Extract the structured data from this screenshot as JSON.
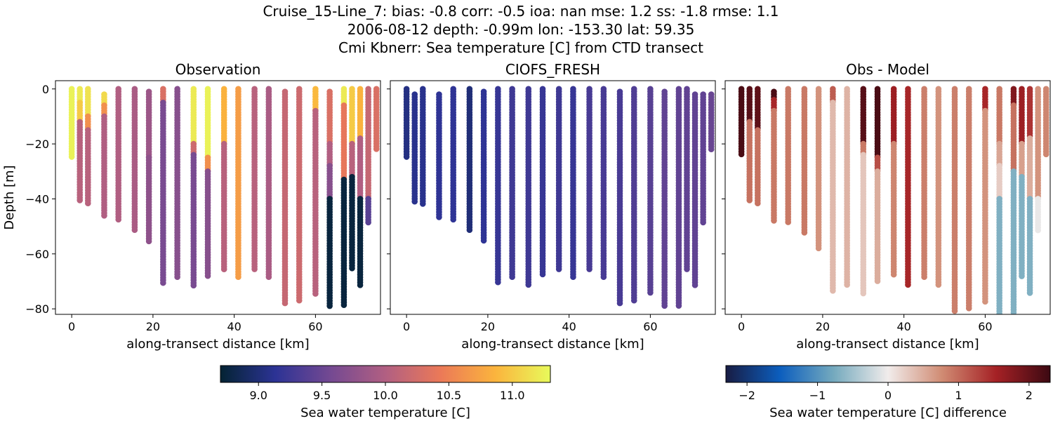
{
  "suptitle": [
    "Cruise_15-Line_7: bias: -0.8  corr: -0.5  ioa: nan  mse: 1.2  ss: -1.8  rmse: 1.1",
    "2006-08-12 depth: -0.99m lon: -153.30 lat: 59.35",
    "Cmi Kbnerr: Sea temperature [C] from CTD transect"
  ],
  "chart_data": [
    {
      "type": "scatter",
      "title": "Observation",
      "xlabel": "along-transect distance [km]",
      "ylabel": "Depth [m]",
      "xlim": [
        -4,
        76
      ],
      "ylim": [
        -82,
        3
      ],
      "xticks": [
        0,
        20,
        40,
        60
      ],
      "yticks": [
        0,
        -20,
        -40,
        -60,
        -80
      ],
      "colormap": "thermal",
      "vmin": 8.7,
      "vmax": 11.3,
      "stations": [
        {
          "x": 0.0,
          "bottom": -25,
          "segments": [
            [
              0,
              -25,
              11.25
            ]
          ]
        },
        {
          "x": 2.0,
          "bottom": -41,
          "segments": [
            [
              0,
              -5,
              11.2
            ],
            [
              -5,
              -12,
              11.0
            ],
            [
              -12,
              -41,
              10.05
            ]
          ]
        },
        {
          "x": 4.0,
          "bottom": -42,
          "segments": [
            [
              0,
              -10,
              11.15
            ],
            [
              -10,
              -15,
              10.6
            ],
            [
              -15,
              -42,
              10.05
            ]
          ]
        },
        {
          "x": 8.0,
          "bottom": -47,
          "segments": [
            [
              -2,
              -6,
              11.1
            ],
            [
              -6,
              -10,
              10.6
            ],
            [
              -10,
              -47,
              10.0
            ]
          ]
        },
        {
          "x": 11.5,
          "bottom": -48,
          "segments": [
            [
              0,
              -48,
              10.0
            ]
          ]
        },
        {
          "x": 15.5,
          "bottom": -52,
          "segments": [
            [
              0,
              -52,
              9.95
            ]
          ]
        },
        {
          "x": 19.0,
          "bottom": -56,
          "segments": [
            [
              -1,
              -25,
              9.85
            ],
            [
              -25,
              -56,
              9.75
            ]
          ]
        },
        {
          "x": 22.5,
          "bottom": -71,
          "segments": [
            [
              0,
              -5,
              10.3
            ],
            [
              -5,
              -71,
              9.6
            ]
          ]
        },
        {
          "x": 26.0,
          "bottom": -69,
          "segments": [
            [
              0,
              -69,
              9.7
            ]
          ]
        },
        {
          "x": 30.0,
          "bottom": -72,
          "segments": [
            [
              0,
              -20,
              11.2
            ],
            [
              -20,
              -24,
              10.2
            ],
            [
              -24,
              -72,
              9.6
            ]
          ]
        },
        {
          "x": 33.5,
          "bottom": -68,
          "segments": [
            [
              0,
              -25,
              11.25
            ],
            [
              -25,
              -30,
              10.6
            ],
            [
              -30,
              -68,
              9.7
            ]
          ]
        },
        {
          "x": 37.5,
          "bottom": -66,
          "segments": [
            [
              0,
              -20,
              10.85
            ],
            [
              -20,
              -66,
              10.05
            ]
          ]
        },
        {
          "x": 41.0,
          "bottom": -69,
          "segments": [
            [
              0,
              -69,
              10.7
            ]
          ]
        },
        {
          "x": 45.0,
          "bottom": -66,
          "segments": [
            [
              0,
              -66,
              10.05
            ]
          ]
        },
        {
          "x": 48.5,
          "bottom": -69,
          "segments": [
            [
              0,
              -69,
              9.95
            ]
          ]
        },
        {
          "x": 52.5,
          "bottom": -78,
          "segments": [
            [
              -1,
              -78,
              10.15
            ]
          ]
        },
        {
          "x": 56.0,
          "bottom": -77,
          "segments": [
            [
              0,
              -77,
              10.2
            ]
          ]
        },
        {
          "x": 60.0,
          "bottom": -75,
          "segments": [
            [
              0,
              -8,
              10.9
            ],
            [
              -8,
              -75,
              10.05
            ]
          ]
        },
        {
          "x": 63.5,
          "bottom": -79,
          "segments": [
            [
              -1,
              -20,
              10.3
            ],
            [
              -20,
              -28,
              10.0
            ],
            [
              -28,
              -40,
              9.7
            ],
            [
              -40,
              -79,
              8.75
            ]
          ]
        },
        {
          "x": 67.0,
          "bottom": -79,
          "segments": [
            [
              0,
              -6,
              11.2
            ],
            [
              -6,
              -33,
              10.4
            ],
            [
              -33,
              -79,
              8.75
            ]
          ]
        },
        {
          "x": 69.0,
          "bottom": -66,
          "segments": [
            [
              0,
              -20,
              11.0
            ],
            [
              -20,
              -32,
              10.05
            ],
            [
              -32,
              -66,
              8.75
            ]
          ]
        },
        {
          "x": 71.0,
          "bottom": -72,
          "segments": [
            [
              0,
              -18,
              10.85
            ],
            [
              -18,
              -40,
              10.0
            ],
            [
              -40,
              -72,
              8.75
            ]
          ]
        },
        {
          "x": 73.0,
          "bottom": -49,
          "segments": [
            [
              0,
              -40,
              10.15
            ],
            [
              -40,
              -49,
              9.4
            ]
          ]
        },
        {
          "x": 75.0,
          "bottom": -22,
          "segments": [
            [
              0,
              -22,
              10.3
            ]
          ]
        }
      ]
    },
    {
      "type": "scatter",
      "title": "CIOFS_FRESH",
      "xlabel": "along-transect distance [km]",
      "ylabel": "",
      "xlim": [
        -4,
        76
      ],
      "ylim": [
        -82,
        3
      ],
      "xticks": [
        0,
        20,
        40,
        60
      ],
      "yticks": [
        0,
        -20,
        -40,
        -60,
        -80
      ],
      "colormap": "thermal",
      "vmin": 8.7,
      "vmax": 11.3,
      "stations": [
        {
          "x": 0.0,
          "bottom": -25,
          "segments": [
            [
              0,
              -25,
              9.05
            ]
          ]
        },
        {
          "x": 2.0,
          "bottom": -41,
          "segments": [
            [
              -2,
              -41,
              9.1
            ]
          ]
        },
        {
          "x": 4.0,
          "bottom": -42,
          "segments": [
            [
              0,
              -42,
              9.1
            ]
          ]
        },
        {
          "x": 8.0,
          "bottom": -47,
          "segments": [
            [
              -2,
              -47,
              9.15
            ]
          ]
        },
        {
          "x": 11.5,
          "bottom": -48,
          "segments": [
            [
              0,
              -48,
              9.15
            ]
          ]
        },
        {
          "x": 15.5,
          "bottom": -52,
          "segments": [
            [
              0,
              -52,
              9.0
            ]
          ]
        },
        {
          "x": 19.0,
          "bottom": -56,
          "segments": [
            [
              -1,
              -56,
              9.15
            ]
          ]
        },
        {
          "x": 22.5,
          "bottom": -71,
          "segments": [
            [
              0,
              -71,
              9.2
            ]
          ]
        },
        {
          "x": 26.0,
          "bottom": -69,
          "segments": [
            [
              0,
              -69,
              9.25
            ]
          ]
        },
        {
          "x": 30.0,
          "bottom": -72,
          "segments": [
            [
              0,
              -72,
              9.25
            ]
          ]
        },
        {
          "x": 33.5,
          "bottom": -68,
          "segments": [
            [
              0,
              -68,
              9.2
            ]
          ]
        },
        {
          "x": 37.5,
          "bottom": -66,
          "segments": [
            [
              0,
              -66,
              9.25
            ]
          ]
        },
        {
          "x": 41.0,
          "bottom": -69,
          "segments": [
            [
              0,
              -69,
              9.2
            ]
          ]
        },
        {
          "x": 45.0,
          "bottom": -66,
          "segments": [
            [
              0,
              -66,
              9.3
            ]
          ]
        },
        {
          "x": 48.5,
          "bottom": -69,
          "segments": [
            [
              0,
              -69,
              9.3
            ]
          ]
        },
        {
          "x": 52.5,
          "bottom": -78,
          "segments": [
            [
              -1,
              -78,
              9.3
            ]
          ]
        },
        {
          "x": 56.0,
          "bottom": -77,
          "segments": [
            [
              0,
              -77,
              9.35
            ]
          ]
        },
        {
          "x": 60.0,
          "bottom": -75,
          "segments": [
            [
              0,
              -75,
              9.4
            ]
          ]
        },
        {
          "x": 63.5,
          "bottom": -79,
          "segments": [
            [
              -1,
              -79,
              9.45
            ]
          ]
        },
        {
          "x": 67.0,
          "bottom": -79,
          "segments": [
            [
              0,
              -79,
              9.45
            ]
          ]
        },
        {
          "x": 69.0,
          "bottom": -66,
          "segments": [
            [
              0,
              -66,
              9.45
            ]
          ]
        },
        {
          "x": 71.0,
          "bottom": -72,
          "segments": [
            [
              -2,
              -72,
              9.45
            ]
          ]
        },
        {
          "x": 73.0,
          "bottom": -49,
          "segments": [
            [
              -2,
              -49,
              9.45
            ]
          ]
        },
        {
          "x": 75.0,
          "bottom": -22,
          "segments": [
            [
              -2,
              -22,
              9.5
            ]
          ]
        }
      ]
    },
    {
      "type": "scatter",
      "title": "Obs - Model",
      "xlabel": "along-transect distance [km]",
      "ylabel": "",
      "xlim": [
        -4,
        76
      ],
      "ylim": [
        -82,
        3
      ],
      "xticks": [
        0,
        20,
        40,
        60
      ],
      "yticks": [
        0,
        -20,
        -40,
        -60,
        -80
      ],
      "colormap": "balance",
      "vmin": -2.3,
      "vmax": 2.3,
      "stations": [
        {
          "x": 0.0,
          "bottom": -24,
          "segments": [
            [
              0,
              -24,
              2.2
            ]
          ]
        },
        {
          "x": 2.0,
          "bottom": -41,
          "segments": [
            [
              0,
              -12,
              2.1
            ],
            [
              -12,
              -41,
              0.95
            ]
          ]
        },
        {
          "x": 4.0,
          "bottom": -42,
          "segments": [
            [
              0,
              -15,
              2.05
            ],
            [
              -15,
              -42,
              0.95
            ]
          ]
        },
        {
          "x": 8.0,
          "bottom": -48,
          "segments": [
            [
              -1,
              -4,
              2.2
            ],
            [
              -4,
              -8,
              1.5
            ],
            [
              -8,
              -48,
              0.9
            ]
          ]
        },
        {
          "x": 11.5,
          "bottom": -49,
          "segments": [
            [
              0,
              -49,
              0.9
            ]
          ]
        },
        {
          "x": 15.5,
          "bottom": -53,
          "segments": [
            [
              0,
              -53,
              0.9
            ]
          ]
        },
        {
          "x": 19.0,
          "bottom": -58,
          "segments": [
            [
              0,
              -58,
              0.7
            ]
          ]
        },
        {
          "x": 22.5,
          "bottom": -74,
          "segments": [
            [
              0,
              -5,
              1.1
            ],
            [
              -5,
              -74,
              0.4
            ]
          ]
        },
        {
          "x": 26.0,
          "bottom": -72,
          "segments": [
            [
              0,
              -72,
              0.45
            ]
          ]
        },
        {
          "x": 30.0,
          "bottom": -75,
          "segments": [
            [
              0,
              -20,
              2.1
            ],
            [
              -20,
              -24,
              0.9
            ],
            [
              -24,
              -75,
              0.3
            ]
          ]
        },
        {
          "x": 33.5,
          "bottom": -70,
          "segments": [
            [
              0,
              -25,
              2.2
            ],
            [
              -25,
              -30,
              1.2
            ],
            [
              -30,
              -70,
              0.5
            ]
          ]
        },
        {
          "x": 37.5,
          "bottom": -68,
          "segments": [
            [
              0,
              -20,
              1.6
            ],
            [
              -20,
              -68,
              0.8
            ]
          ]
        },
        {
          "x": 41.0,
          "bottom": -72,
          "segments": [
            [
              0,
              -72,
              1.5
            ]
          ]
        },
        {
          "x": 45.0,
          "bottom": -69,
          "segments": [
            [
              0,
              -69,
              0.85
            ]
          ]
        },
        {
          "x": 48.5,
          "bottom": -72,
          "segments": [
            [
              0,
              -72,
              0.7
            ]
          ]
        },
        {
          "x": 52.5,
          "bottom": -81,
          "segments": [
            [
              0,
              -81,
              0.85
            ]
          ]
        },
        {
          "x": 56.0,
          "bottom": -80,
          "segments": [
            [
              0,
              -80,
              0.85
            ]
          ]
        },
        {
          "x": 60.0,
          "bottom": -78,
          "segments": [
            [
              0,
              -8,
              1.5
            ],
            [
              -8,
              -78,
              0.7
            ]
          ]
        },
        {
          "x": 63.5,
          "bottom": -82,
          "segments": [
            [
              0,
              -20,
              0.9
            ],
            [
              -20,
              -28,
              0.55
            ],
            [
              -28,
              -40,
              0.25
            ],
            [
              -40,
              -82,
              -0.7
            ]
          ]
        },
        {
          "x": 67.0,
          "bottom": -82,
          "segments": [
            [
              0,
              -6,
              1.8
            ],
            [
              -6,
              -30,
              0.95
            ],
            [
              -30,
              -82,
              -0.7
            ]
          ]
        },
        {
          "x": 69.0,
          "bottom": -69,
          "segments": [
            [
              0,
              -20,
              1.6
            ],
            [
              -20,
              -32,
              0.6
            ],
            [
              -32,
              -69,
              -0.7
            ]
          ]
        },
        {
          "x": 71.0,
          "bottom": -75,
          "segments": [
            [
              0,
              -18,
              1.4
            ],
            [
              -18,
              -40,
              0.5
            ],
            [
              -40,
              -75,
              -0.7
            ]
          ]
        },
        {
          "x": 73.0,
          "bottom": -52,
          "segments": [
            [
              0,
              -40,
              0.7
            ],
            [
              -40,
              -52,
              -0.05
            ]
          ]
        },
        {
          "x": 75.0,
          "bottom": -24,
          "segments": [
            [
              0,
              -24,
              0.8
            ]
          ]
        }
      ]
    }
  ],
  "colorbars": [
    {
      "label": "Sea water temperature [C]",
      "colormap": "thermal",
      "vmin": 8.7,
      "vmax": 11.3,
      "ticks": [
        9.0,
        9.5,
        10.0,
        10.5,
        11.0
      ],
      "tick_labels": [
        "9.0",
        "9.5",
        "10.0",
        "10.5",
        "11.0"
      ]
    },
    {
      "label": "Sea water temperature [C] difference",
      "colormap": "balance",
      "vmin": -2.3,
      "vmax": 2.3,
      "ticks": [
        -2,
        -1,
        0,
        1,
        2
      ],
      "tick_labels": [
        "−2",
        "−1",
        "0",
        "1",
        "2"
      ]
    }
  ],
  "colormaps": {
    "thermal": [
      "#042333",
      "#2c3395",
      "#744992",
      "#b15f82",
      "#eb7958",
      "#fbb43d",
      "#e8fa5b"
    ],
    "balance": [
      "#181c43",
      "#0c5ebe",
      "#75aabe",
      "#f1eceb",
      "#d08b73",
      "#a52125",
      "#3c0912"
    ]
  }
}
